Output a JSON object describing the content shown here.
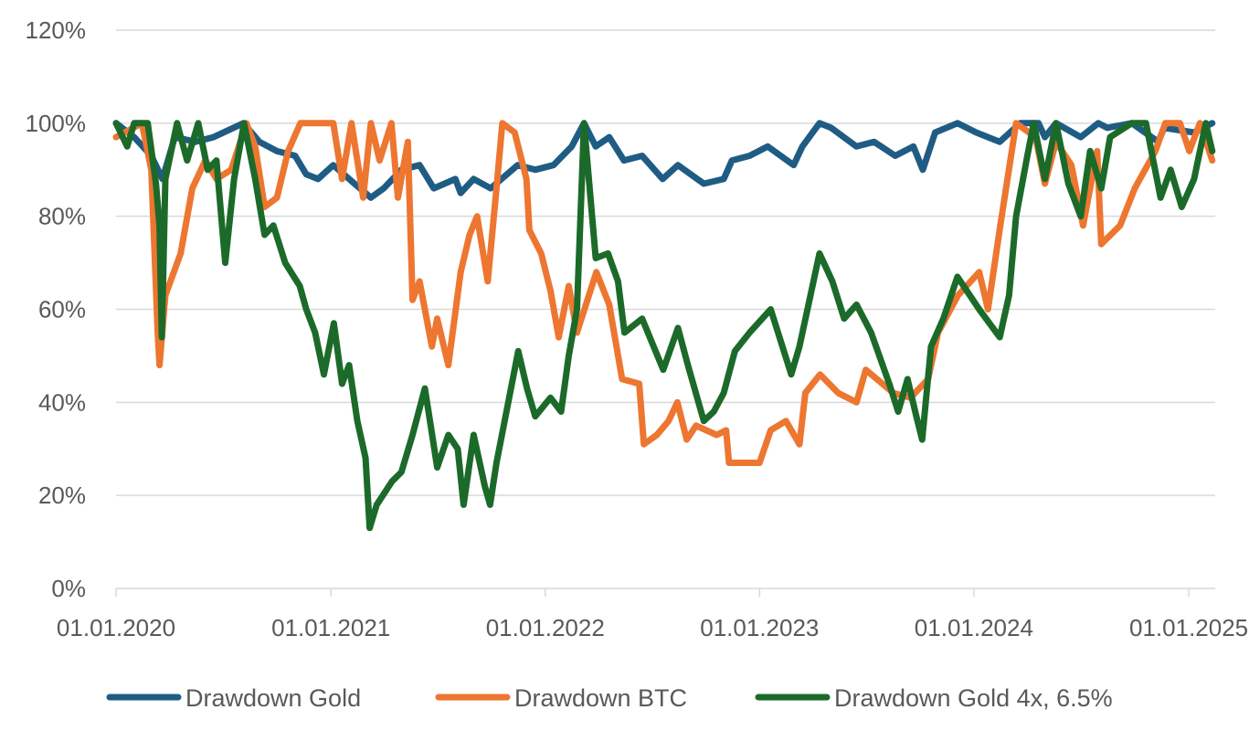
{
  "chart_data": {
    "type": "line",
    "title": "",
    "xlabel": "",
    "ylabel": "",
    "ylim": [
      0,
      120
    ],
    "y_ticks": [
      "0%",
      "20%",
      "40%",
      "60%",
      "80%",
      "100%",
      "120%"
    ],
    "y_tick_values": [
      0,
      20,
      40,
      60,
      80,
      100,
      120
    ],
    "x_range": [
      "2020-01-01",
      "2025-02-15"
    ],
    "x_ticks": [
      "01.01.2020",
      "01.01.2021",
      "01.01.2022",
      "01.01.2023",
      "01.01.2024",
      "01.01.2025"
    ],
    "x_tick_dates": [
      "2020-01-01",
      "2021-01-01",
      "2022-01-01",
      "2023-01-01",
      "2024-01-01",
      "2025-01-01"
    ],
    "grid": "horizontal",
    "legend": "bottom",
    "series": [
      {
        "name": "Drawdown Gold",
        "color": "#1f5c84",
        "points": [
          [
            "2020-01-01",
            100
          ],
          [
            "2020-02-01",
            97
          ],
          [
            "2020-03-01",
            93
          ],
          [
            "2020-03-20",
            88
          ],
          [
            "2020-04-10",
            97
          ],
          [
            "2020-05-15",
            96
          ],
          [
            "2020-06-15",
            97
          ],
          [
            "2020-08-05",
            100
          ],
          [
            "2020-09-01",
            96
          ],
          [
            "2020-10-01",
            94
          ],
          [
            "2020-11-01",
            93
          ],
          [
            "2020-11-20",
            89
          ],
          [
            "2020-12-10",
            88
          ],
          [
            "2021-01-05",
            91
          ],
          [
            "2021-02-01",
            88
          ],
          [
            "2021-03-10",
            84
          ],
          [
            "2021-04-01",
            86
          ],
          [
            "2021-05-01",
            90
          ],
          [
            "2021-06-01",
            91
          ],
          [
            "2021-06-25",
            86
          ],
          [
            "2021-08-01",
            88
          ],
          [
            "2021-08-10",
            85
          ],
          [
            "2021-09-01",
            88
          ],
          [
            "2021-09-30",
            86
          ],
          [
            "2021-11-15",
            91
          ],
          [
            "2021-12-15",
            90
          ],
          [
            "2022-01-15",
            91
          ],
          [
            "2022-02-15",
            95
          ],
          [
            "2022-03-08",
            100
          ],
          [
            "2022-03-28",
            95
          ],
          [
            "2022-04-20",
            97
          ],
          [
            "2022-05-15",
            92
          ],
          [
            "2022-06-15",
            93
          ],
          [
            "2022-07-20",
            88
          ],
          [
            "2022-08-15",
            91
          ],
          [
            "2022-09-28",
            87
          ],
          [
            "2022-11-01",
            88
          ],
          [
            "2022-11-15",
            92
          ],
          [
            "2022-12-15",
            93
          ],
          [
            "2023-01-15",
            95
          ],
          [
            "2023-02-28",
            91
          ],
          [
            "2023-03-15",
            95
          ],
          [
            "2023-04-13",
            100
          ],
          [
            "2023-05-03",
            99
          ],
          [
            "2023-06-15",
            95
          ],
          [
            "2023-07-15",
            96
          ],
          [
            "2023-08-20",
            93
          ],
          [
            "2023-09-20",
            95
          ],
          [
            "2023-10-06",
            90
          ],
          [
            "2023-10-27",
            98
          ],
          [
            "2023-12-04",
            100
          ],
          [
            "2024-01-05",
            98
          ],
          [
            "2024-02-14",
            96
          ],
          [
            "2024-03-20",
            100
          ],
          [
            "2024-04-20",
            100
          ],
          [
            "2024-05-01",
            97
          ],
          [
            "2024-05-20",
            100
          ],
          [
            "2024-07-01",
            97
          ],
          [
            "2024-07-31",
            100
          ],
          [
            "2024-08-15",
            99
          ],
          [
            "2024-09-26",
            100
          ],
          [
            "2024-11-10",
            96
          ],
          [
            "2024-11-20",
            99
          ],
          [
            "2025-01-10",
            98
          ],
          [
            "2025-02-10",
            100
          ]
        ]
      },
      {
        "name": "Drawdown BTC",
        "color": "#ed7631",
        "points": [
          [
            "2020-01-01",
            97
          ],
          [
            "2020-02-14",
            100
          ],
          [
            "2020-03-01",
            90
          ],
          [
            "2020-03-12",
            55
          ],
          [
            "2020-03-15",
            48
          ],
          [
            "2020-03-25",
            63
          ],
          [
            "2020-04-20",
            72
          ],
          [
            "2020-05-10",
            86
          ],
          [
            "2020-06-01",
            92
          ],
          [
            "2020-06-20",
            88
          ],
          [
            "2020-07-15",
            90
          ],
          [
            "2020-08-10",
            100
          ],
          [
            "2020-08-25",
            95
          ],
          [
            "2020-09-10",
            82
          ],
          [
            "2020-10-01",
            84
          ],
          [
            "2020-10-20",
            94
          ],
          [
            "2020-11-10",
            100
          ],
          [
            "2020-12-10",
            100
          ],
          [
            "2021-01-05",
            100
          ],
          [
            "2021-01-20",
            88
          ],
          [
            "2021-02-05",
            100
          ],
          [
            "2021-02-25",
            84
          ],
          [
            "2021-03-10",
            100
          ],
          [
            "2021-03-25",
            92
          ],
          [
            "2021-04-14",
            100
          ],
          [
            "2021-04-25",
            84
          ],
          [
            "2021-05-12",
            96
          ],
          [
            "2021-05-20",
            62
          ],
          [
            "2021-06-01",
            66
          ],
          [
            "2021-06-22",
            52
          ],
          [
            "2021-07-01",
            58
          ],
          [
            "2021-07-20",
            48
          ],
          [
            "2021-08-10",
            68
          ],
          [
            "2021-08-25",
            76
          ],
          [
            "2021-09-07",
            80
          ],
          [
            "2021-09-25",
            66
          ],
          [
            "2021-10-10",
            86
          ],
          [
            "2021-10-20",
            100
          ],
          [
            "2021-11-10",
            98
          ],
          [
            "2021-11-30",
            88
          ],
          [
            "2021-12-05",
            77
          ],
          [
            "2021-12-25",
            72
          ],
          [
            "2022-01-10",
            64
          ],
          [
            "2022-01-24",
            54
          ],
          [
            "2022-02-10",
            65
          ],
          [
            "2022-02-24",
            55
          ],
          [
            "2022-03-29",
            68
          ],
          [
            "2022-04-20",
            61
          ],
          [
            "2022-05-12",
            45
          ],
          [
            "2022-06-10",
            44
          ],
          [
            "2022-06-18",
            31
          ],
          [
            "2022-07-10",
            33
          ],
          [
            "2022-07-30",
            36
          ],
          [
            "2022-08-14",
            40
          ],
          [
            "2022-08-30",
            32
          ],
          [
            "2022-09-15",
            35
          ],
          [
            "2022-10-20",
            33
          ],
          [
            "2022-11-05",
            34
          ],
          [
            "2022-11-10",
            27
          ],
          [
            "2022-12-15",
            27
          ],
          [
            "2023-01-01",
            27
          ],
          [
            "2023-01-20",
            34
          ],
          [
            "2023-02-15",
            36
          ],
          [
            "2023-03-10",
            31
          ],
          [
            "2023-03-20",
            42
          ],
          [
            "2023-04-14",
            46
          ],
          [
            "2023-05-15",
            42
          ],
          [
            "2023-06-15",
            40
          ],
          [
            "2023-07-01",
            47
          ],
          [
            "2023-08-17",
            42
          ],
          [
            "2023-09-15",
            41
          ],
          [
            "2023-10-15",
            45
          ],
          [
            "2023-11-01",
            55
          ],
          [
            "2023-12-05",
            63
          ],
          [
            "2024-01-10",
            68
          ],
          [
            "2024-01-25",
            60
          ],
          [
            "2024-02-15",
            78
          ],
          [
            "2024-03-13",
            100
          ],
          [
            "2024-04-15",
            97
          ],
          [
            "2024-05-01",
            87
          ],
          [
            "2024-05-20",
            96
          ],
          [
            "2024-06-15",
            91
          ],
          [
            "2024-07-05",
            78
          ],
          [
            "2024-07-29",
            94
          ],
          [
            "2024-08-05",
            74
          ],
          [
            "2024-09-06",
            78
          ],
          [
            "2024-10-01",
            86
          ],
          [
            "2024-11-05",
            94
          ],
          [
            "2024-11-22",
            100
          ],
          [
            "2024-12-17",
            100
          ],
          [
            "2025-01-02",
            94
          ],
          [
            "2025-01-20",
            100
          ],
          [
            "2025-02-10",
            92
          ]
        ]
      },
      {
        "name": "Drawdown Gold 4x, 6.5%",
        "color": "#1c6a2a",
        "points": [
          [
            "2020-01-01",
            100
          ],
          [
            "2020-01-20",
            95
          ],
          [
            "2020-02-01",
            100
          ],
          [
            "2020-02-24",
            100
          ],
          [
            "2020-03-09",
            87
          ],
          [
            "2020-03-15",
            78
          ],
          [
            "2020-03-19",
            54
          ],
          [
            "2020-03-25",
            88
          ],
          [
            "2020-04-14",
            100
          ],
          [
            "2020-05-01",
            92
          ],
          [
            "2020-05-20",
            100
          ],
          [
            "2020-06-05",
            90
          ],
          [
            "2020-06-20",
            92
          ],
          [
            "2020-07-05",
            70
          ],
          [
            "2020-07-20",
            88
          ],
          [
            "2020-08-06",
            100
          ],
          [
            "2020-08-25",
            88
          ],
          [
            "2020-09-10",
            76
          ],
          [
            "2020-09-25",
            78
          ],
          [
            "2020-10-15",
            70
          ],
          [
            "2020-11-09",
            65
          ],
          [
            "2020-11-20",
            60
          ],
          [
            "2020-12-05",
            55
          ],
          [
            "2020-12-20",
            46
          ],
          [
            "2021-01-06",
            57
          ],
          [
            "2021-01-20",
            44
          ],
          [
            "2021-02-01",
            48
          ],
          [
            "2021-02-15",
            36
          ],
          [
            "2021-03-01",
            28
          ],
          [
            "2021-03-08",
            13
          ],
          [
            "2021-03-20",
            18
          ],
          [
            "2021-04-15",
            23
          ],
          [
            "2021-05-01",
            25
          ],
          [
            "2021-05-20",
            33
          ],
          [
            "2021-06-10",
            43
          ],
          [
            "2021-06-20",
            35
          ],
          [
            "2021-07-01",
            26
          ],
          [
            "2021-07-20",
            33
          ],
          [
            "2021-08-05",
            30
          ],
          [
            "2021-08-15",
            18
          ],
          [
            "2021-09-01",
            33
          ],
          [
            "2021-09-20",
            22
          ],
          [
            "2021-09-29",
            18
          ],
          [
            "2021-10-10",
            27
          ],
          [
            "2021-11-16",
            51
          ],
          [
            "2021-12-01",
            43
          ],
          [
            "2021-12-15",
            37
          ],
          [
            "2022-01-10",
            41
          ],
          [
            "2022-01-28",
            38
          ],
          [
            "2022-02-10",
            50
          ],
          [
            "2022-02-24",
            60
          ],
          [
            "2022-03-08",
            100
          ],
          [
            "2022-03-28",
            71
          ],
          [
            "2022-04-18",
            72
          ],
          [
            "2022-05-05",
            66
          ],
          [
            "2022-05-16",
            55
          ],
          [
            "2022-06-15",
            58
          ],
          [
            "2022-07-21",
            47
          ],
          [
            "2022-08-15",
            56
          ],
          [
            "2022-09-01",
            48
          ],
          [
            "2022-09-28",
            36
          ],
          [
            "2022-10-15",
            38
          ],
          [
            "2022-11-01",
            42
          ],
          [
            "2022-11-20",
            51
          ],
          [
            "2022-12-15",
            55
          ],
          [
            "2023-01-20",
            60
          ],
          [
            "2023-02-24",
            46
          ],
          [
            "2023-03-10",
            52
          ],
          [
            "2023-04-13",
            72
          ],
          [
            "2023-05-05",
            66
          ],
          [
            "2023-05-25",
            58
          ],
          [
            "2023-06-15",
            61
          ],
          [
            "2023-07-10",
            55
          ],
          [
            "2023-08-10",
            44
          ],
          [
            "2023-08-25",
            38
          ],
          [
            "2023-09-10",
            45
          ],
          [
            "2023-09-25",
            37
          ],
          [
            "2023-10-05",
            32
          ],
          [
            "2023-10-20",
            52
          ],
          [
            "2023-11-10",
            58
          ],
          [
            "2023-12-04",
            67
          ],
          [
            "2024-01-10",
            60
          ],
          [
            "2024-02-14",
            54
          ],
          [
            "2024-03-01",
            63
          ],
          [
            "2024-03-13",
            80
          ],
          [
            "2024-04-01",
            93
          ],
          [
            "2024-04-12",
            100
          ],
          [
            "2024-05-01",
            88
          ],
          [
            "2024-05-20",
            100
          ],
          [
            "2024-06-10",
            87
          ],
          [
            "2024-07-01",
            80
          ],
          [
            "2024-07-17",
            94
          ],
          [
            "2024-08-05",
            86
          ],
          [
            "2024-08-20",
            97
          ],
          [
            "2024-09-26",
            100
          ],
          [
            "2024-10-20",
            100
          ],
          [
            "2024-11-14",
            84
          ],
          [
            "2024-12-01",
            90
          ],
          [
            "2024-12-20",
            82
          ],
          [
            "2025-01-10",
            88
          ],
          [
            "2025-01-30",
            100
          ],
          [
            "2025-02-10",
            94
          ]
        ]
      }
    ]
  }
}
